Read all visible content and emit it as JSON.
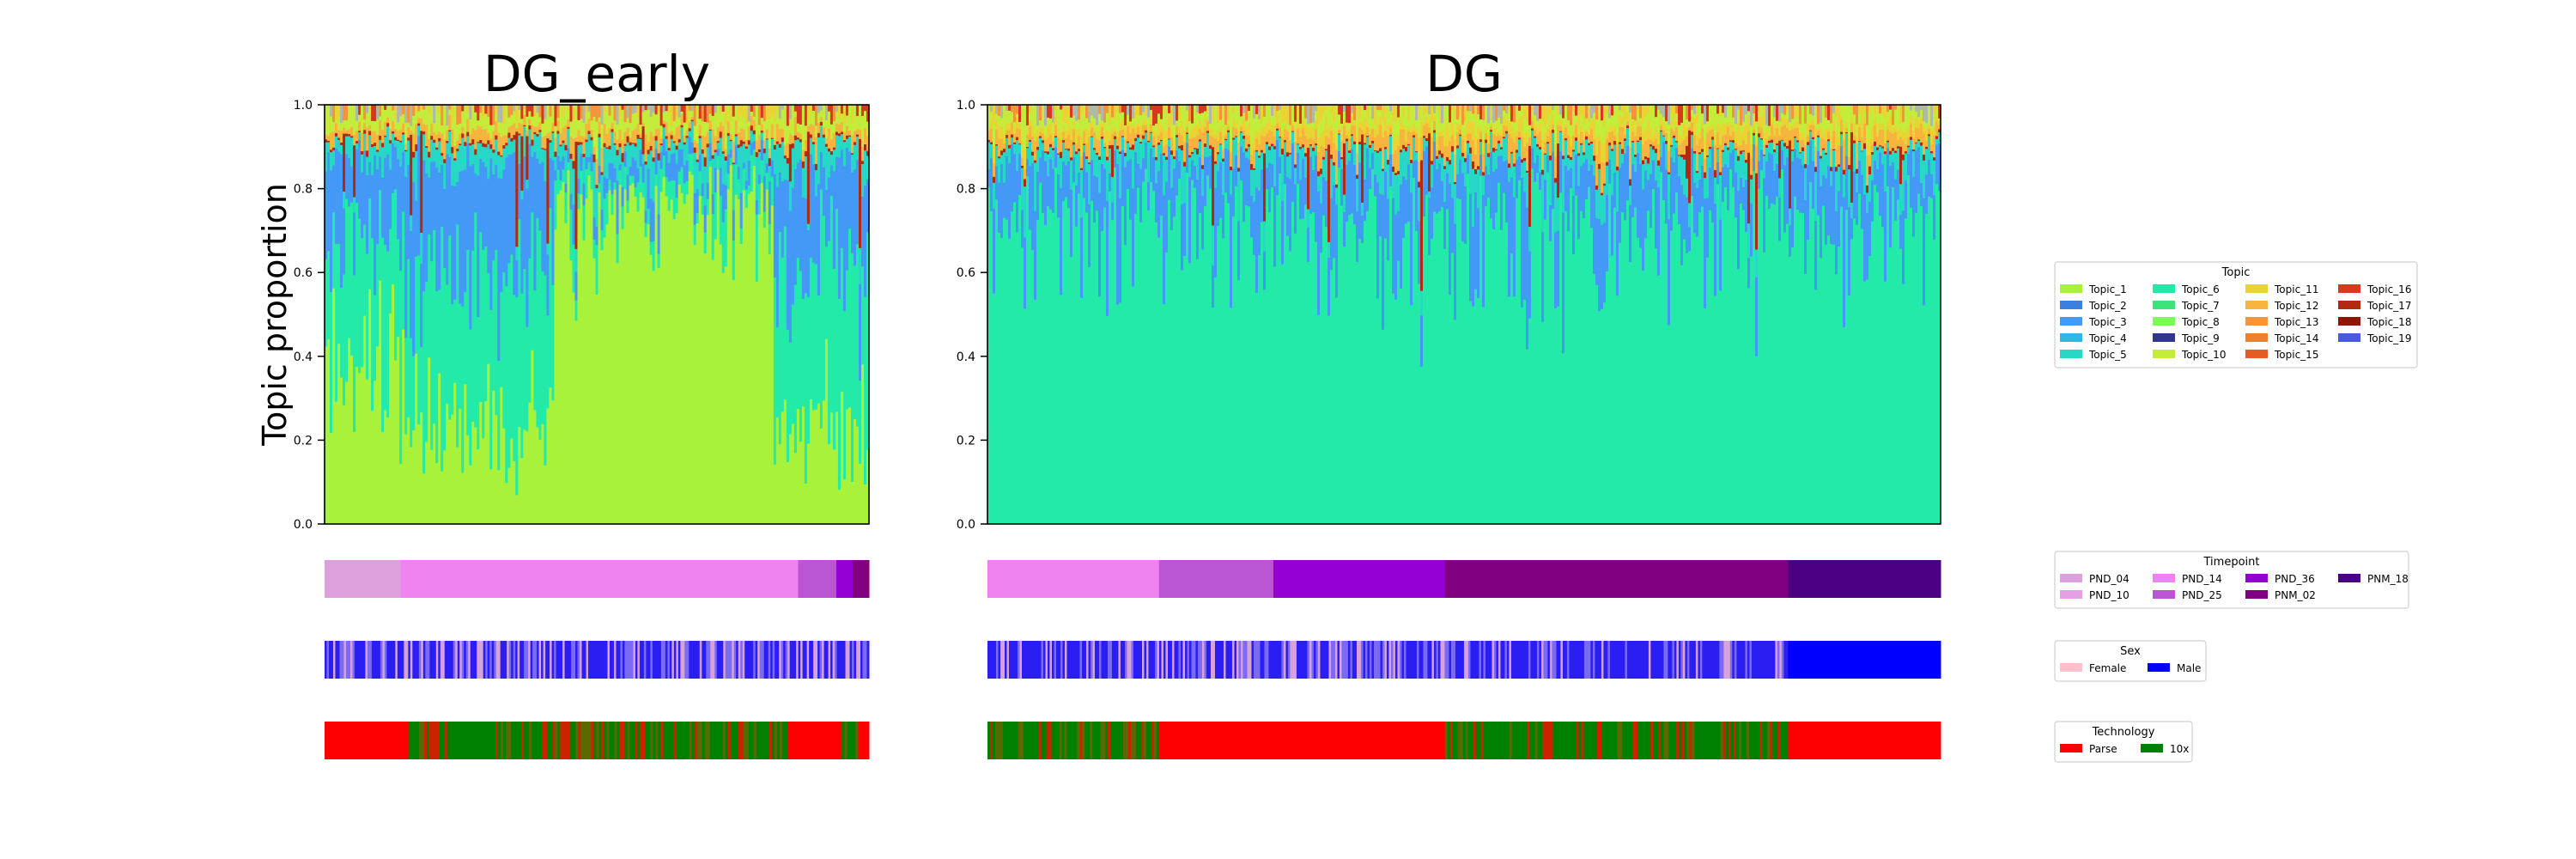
{
  "chart_data": {
    "type": "area",
    "ylabel": "Topic proportion",
    "ylim": [
      0,
      1.0
    ],
    "yticks": [
      "0.0",
      "0.2",
      "0.4",
      "0.6",
      "0.8",
      "1.0"
    ],
    "grid": false,
    "panels": [
      {
        "title": "DG_early",
        "stack_summary": [
          {
            "topic": "Topic_1",
            "mean_share": 0.42
          },
          {
            "topic": "Topic_6",
            "mean_share": 0.25
          },
          {
            "topic": "Topic_3",
            "mean_share": 0.17
          },
          {
            "topic": "Topic_5",
            "mean_share": 0.06
          },
          {
            "topic": "Topic_17",
            "mean_share": 0.04
          },
          {
            "topic": "Topic_12",
            "mean_share": 0.03
          },
          {
            "topic": "Topic_10",
            "mean_share": 0.03
          }
        ],
        "timepoint_bar": [
          {
            "label": "PND_04",
            "fraction": 0.14
          },
          {
            "label": "PND_14",
            "fraction": 0.73
          },
          {
            "label": "PND_25",
            "fraction": 0.07
          },
          {
            "label": "PND_36",
            "fraction": 0.03
          },
          {
            "label": "PNM_02",
            "fraction": 0.03
          }
        ],
        "sex_bar": {
          "pattern": "interleaved",
          "female_share": 0.3,
          "male_share": 0.7
        },
        "technology_bar": [
          {
            "label": "Parse",
            "fraction": 0.155
          },
          {
            "label": "mixed",
            "fraction": 0.07
          },
          {
            "label": "10x",
            "fraction": 0.07
          },
          {
            "label": "mixed",
            "fraction": 0.555
          },
          {
            "label": "Parse",
            "fraction": 0.1
          },
          {
            "label": "mixed",
            "fraction": 0.03
          },
          {
            "label": "Parse",
            "fraction": 0.02
          }
        ]
      },
      {
        "title": "DG",
        "stack_summary": [
          {
            "topic": "Topic_6",
            "mean_share": 0.72
          },
          {
            "topic": "Topic_3",
            "mean_share": 0.13
          },
          {
            "topic": "Topic_5",
            "mean_share": 0.05
          },
          {
            "topic": "Topic_17",
            "mean_share": 0.03
          },
          {
            "topic": "Topic_12",
            "mean_share": 0.03
          },
          {
            "topic": "Topic_11",
            "mean_share": 0.02
          },
          {
            "topic": "Topic_10",
            "mean_share": 0.02
          }
        ],
        "timepoint_bar": [
          {
            "label": "PND_14",
            "fraction": 0.18
          },
          {
            "label": "PND_25",
            "fraction": 0.12
          },
          {
            "label": "PND_36",
            "fraction": 0.18
          },
          {
            "label": "PNM_02",
            "fraction": 0.36
          },
          {
            "label": "PNM_18",
            "fraction": 0.16
          }
        ],
        "sex_bar": [
          {
            "label": "interleaved",
            "fraction": 0.84
          },
          {
            "label": "Male",
            "fraction": 0.16
          }
        ],
        "technology_bar": [
          {
            "label": "mixed",
            "fraction": 0.18
          },
          {
            "label": "Parse",
            "fraction": 0.3
          },
          {
            "label": "mixed",
            "fraction": 0.24
          },
          {
            "label": "mixed",
            "fraction": 0.12
          },
          {
            "label": "Parse",
            "fraction": 0.16
          }
        ]
      }
    ],
    "legends": [
      {
        "title": "Topic",
        "entries": [
          {
            "label": "Topic_1",
            "color": "#a8f23c"
          },
          {
            "label": "Topic_2",
            "color": "#3b7fe0"
          },
          {
            "label": "Topic_3",
            "color": "#4499f7"
          },
          {
            "label": "Topic_4",
            "color": "#2cb8e6"
          },
          {
            "label": "Topic_5",
            "color": "#28d8c6"
          },
          {
            "label": "Topic_6",
            "color": "#23eaa8"
          },
          {
            "label": "Topic_7",
            "color": "#3be37a"
          },
          {
            "label": "Topic_8",
            "color": "#7dfa5a"
          },
          {
            "label": "Topic_9",
            "color": "#32368a"
          },
          {
            "label": "Topic_10",
            "color": "#c4ec3a"
          },
          {
            "label": "Topic_11",
            "color": "#e8d533"
          },
          {
            "label": "Topic_12",
            "color": "#f7b43e"
          },
          {
            "label": "Topic_13",
            "color": "#f4953a"
          },
          {
            "label": "Topic_14",
            "color": "#f07f2c"
          },
          {
            "label": "Topic_15",
            "color": "#e55c22"
          },
          {
            "label": "Topic_16",
            "color": "#d7391c"
          },
          {
            "label": "Topic_17",
            "color": "#b02a10"
          },
          {
            "label": "Topic_18",
            "color": "#8e1404"
          },
          {
            "label": "Topic_19",
            "color": "#4a5bd9"
          }
        ]
      },
      {
        "title": "Timepoint",
        "entries": [
          {
            "label": "PND_04",
            "color": "#dda0dd"
          },
          {
            "label": "PND_10",
            "color": "#e3a0e3"
          },
          {
            "label": "PND_14",
            "color": "#ee82ee"
          },
          {
            "label": "PND_25",
            "color": "#ba55d3"
          },
          {
            "label": "PND_36",
            "color": "#9400d3"
          },
          {
            "label": "PNM_02",
            "color": "#800080"
          },
          {
            "label": "PNM_18",
            "color": "#4b0082"
          }
        ]
      },
      {
        "title": "Sex",
        "entries": [
          {
            "label": "Female",
            "color": "#ffc0cb"
          },
          {
            "label": "Male",
            "color": "#0000ff"
          }
        ]
      },
      {
        "title": "Technology",
        "entries": [
          {
            "label": "Parse",
            "color": "#ff0000"
          },
          {
            "label": "10x",
            "color": "#008000"
          }
        ]
      }
    ]
  }
}
